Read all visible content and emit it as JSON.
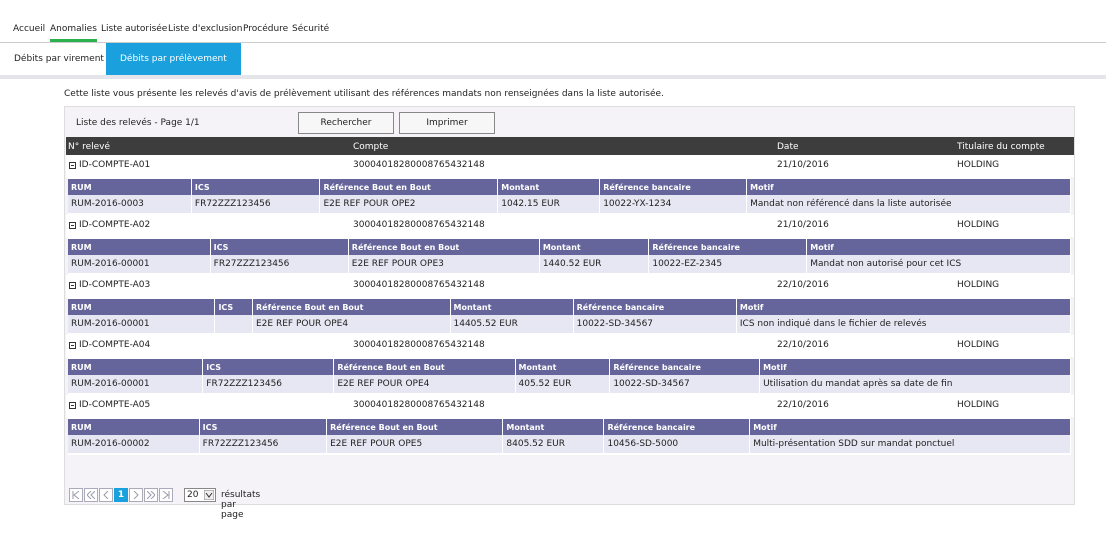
{
  "nav": [
    "Accueil",
    "Anomalies",
    "Liste autorisée",
    "Liste d'exclusion",
    "Procédure",
    "Sécurité"
  ],
  "tabs": [
    "Débits par virement",
    "Débits par prélèvement"
  ],
  "intro": "Cette liste vous présente les relevés d'avis de prélèvement utilisant des références mandats non renseignées dans la liste autorisée.",
  "toolbar": {
    "caption": "Liste des relevés - Page 1/1",
    "buttons": [
      "Rechercher",
      "Imprimer"
    ]
  },
  "table": {
    "headers": [
      "N° relevé",
      "Compte",
      "Date",
      "Titulaire du compte"
    ],
    "subheaders": [
      "RUM",
      "ICS",
      "Référence Bout en Bout",
      "Montant",
      "Référence bancaire",
      "Motif"
    ],
    "records": [
      {
        "id": "ID-COMPTE-A01",
        "compte": "30004018280008765432148",
        "date": "21/10/2016",
        "titulaire": "HOLDING",
        "detail": [
          "RUM-2016-0003",
          "FR72ZZZ123456",
          "E2E REF POUR OPE2",
          "1042.15 EUR",
          "10022-YX-1234",
          "Mandat non référencé dans la liste autorisée"
        ]
      },
      {
        "id": "ID-COMPTE-A02",
        "compte": "30004018280008765432148",
        "date": "21/10/2016",
        "titulaire": "HOLDING",
        "detail": [
          "RUM-2016-00001",
          "FR27ZZZ123456",
          "E2E REF POUR OPE3",
          "1440.52 EUR",
          "10022-EZ-2345",
          "Mandat non autorisé pour cet ICS"
        ]
      },
      {
        "id": "ID-COMPTE-A03",
        "compte": "30004018280008765432148",
        "date": "22/10/2016",
        "titulaire": "HOLDING",
        "detail": [
          "RUM-2016-00001",
          null,
          "E2E REF POUR OPE4",
          "14405.52 EUR",
          "10022-SD-34567",
          "ICS non indiqué dans le fichier de relevés"
        ]
      },
      {
        "id": "ID-COMPTE-A04",
        "compte": "30004018280008765432148",
        "date": "22/10/2016",
        "titulaire": "HOLDING",
        "detail": [
          "RUM-2016-00001",
          "FR72ZZZ123456",
          "E2E REF POUR OPE4",
          "405.52 EUR",
          "10022-SD-34567",
          "Utilisation du mandat après sa date de fin"
        ]
      },
      {
        "id": "ID-COMPTE-A05",
        "compte": "30004018280008765432148",
        "date": "22/10/2016",
        "titulaire": "HOLDING",
        "detail": [
          "RUM-2016-00002",
          "FR72ZZZ123456",
          "E2E REF POUR OPE5",
          "8405.52 EUR",
          "10456-SD-5000",
          "Multi-présentation SDD sur mandat ponctuel"
        ]
      }
    ]
  },
  "pager": {
    "page": "1",
    "size": "20",
    "label": "résultats par page"
  }
}
